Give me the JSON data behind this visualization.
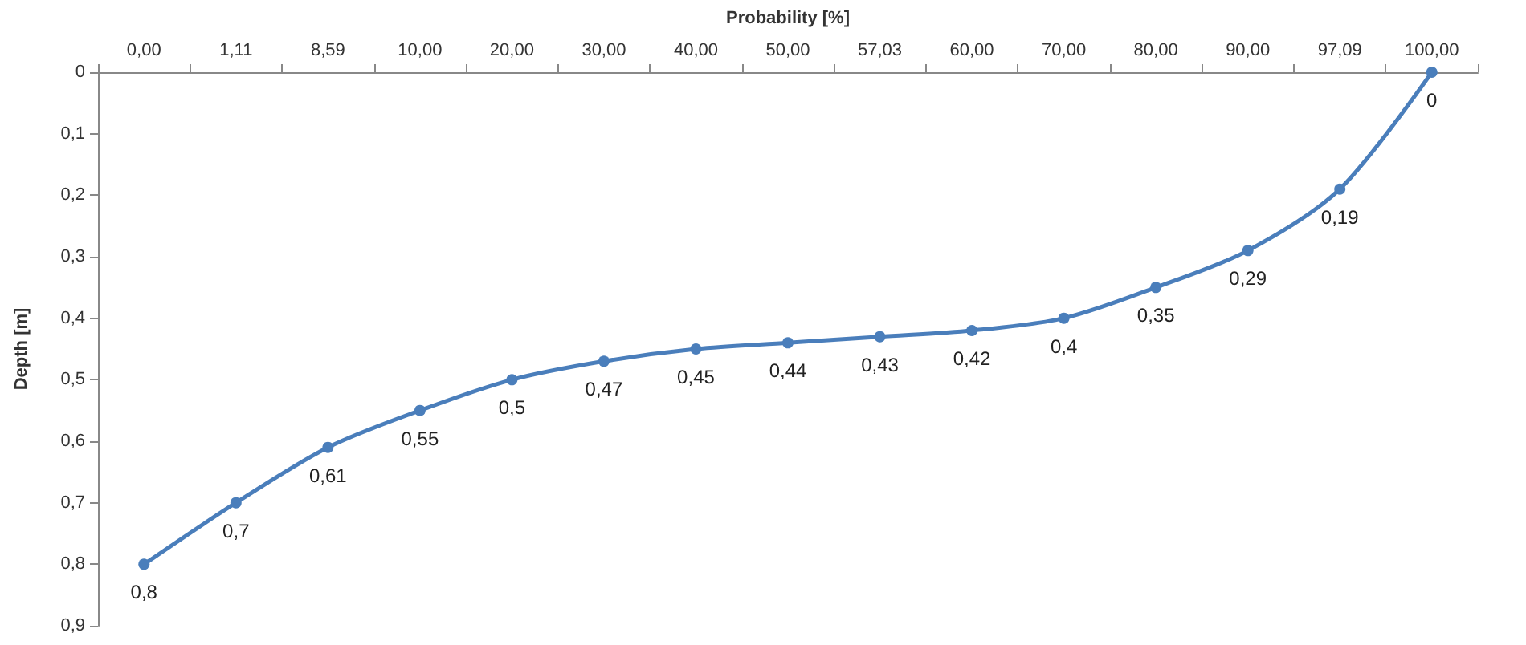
{
  "chart_data": {
    "type": "line",
    "xlabel": "Probability [%]",
    "ylabel": "Depth [m]",
    "categories": [
      "0,00",
      "1,11",
      "8,59",
      "10,00",
      "20,00",
      "30,00",
      "40,00",
      "50,00",
      "57,03",
      "60,00",
      "70,00",
      "80,00",
      "90,00",
      "97,09",
      "100,00"
    ],
    "series": [
      {
        "color": "#4a7ebb",
        "values": [
          0.8,
          0.7,
          0.61,
          0.55,
          0.5,
          0.47,
          0.45,
          0.44,
          0.43,
          0.42,
          0.4,
          0.35,
          0.29,
          0.19,
          0
        ],
        "value_labels": [
          "0,8",
          "0,7",
          "0,61",
          "0,55",
          "0,5",
          "0,47",
          "0,45",
          "0,44",
          "0,43",
          "0,42",
          "0,4",
          "0,35",
          "0,29",
          "0,19",
          "0"
        ]
      }
    ],
    "ylim": [
      0.9,
      0
    ],
    "yticks": [
      0,
      {
        "value": 0.1,
        "label": "0,1"
      },
      {
        "value": 0.2,
        "label": "0,2"
      },
      {
        "value": 0.3,
        "label": "0,3"
      },
      {
        "value": 0.4,
        "label": "0,4"
      },
      {
        "value": 0.5,
        "label": "0,5"
      },
      {
        "value": 0.6,
        "label": "0,6"
      },
      {
        "value": 0.7,
        "label": "0,7"
      },
      {
        "value": 0.8,
        "label": "0,8"
      },
      {
        "value": 0.9,
        "label": "0,9"
      }
    ],
    "marker": "circle"
  }
}
